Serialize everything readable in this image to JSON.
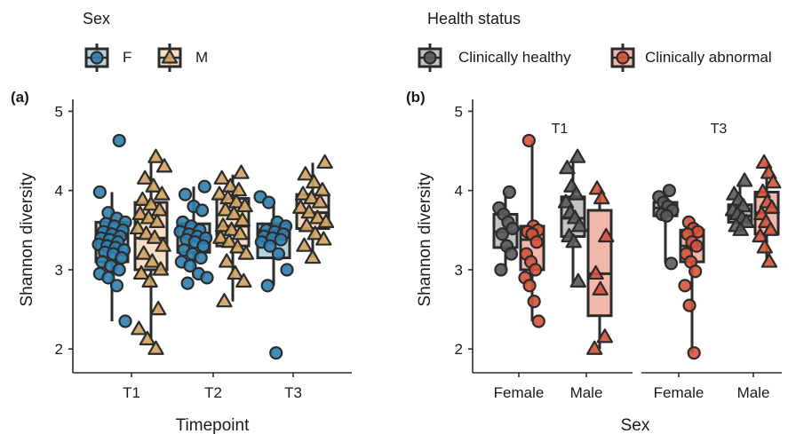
{
  "chart_data": [
    {
      "type": "boxplot",
      "panel": "(a)",
      "xlabel": "Timepoint",
      "ylabel": "Shannon diversity",
      "categories": [
        "T1",
        "T2",
        "T3"
      ],
      "ylim": [
        1.7,
        5.15
      ],
      "yticks": [
        2,
        3,
        4,
        5
      ],
      "grid": false,
      "legend": {
        "title": "Sex",
        "placement": "top-left",
        "entries": [
          "F",
          "M"
        ]
      },
      "series": [
        {
          "name": "F",
          "color": "#2f7fb0",
          "fill": "#a9c9dd",
          "marker": "circle",
          "boxes": [
            {
              "category": "T1",
              "min": 2.35,
              "q1": 3.1,
              "median": 3.45,
              "q3": 3.6,
              "max": 3.98
            },
            {
              "category": "T2",
              "min": 2.9,
              "q1": 3.22,
              "median": 3.42,
              "q3": 3.58,
              "max": 4.05
            },
            {
              "category": "T3",
              "min": 2.8,
              "q1": 3.15,
              "median": 3.5,
              "q3": 3.58,
              "max": 3.85
            }
          ],
          "points": [
            [
              4.63,
              3.98,
              3.72,
              3.65,
              3.6,
              3.58,
              3.55,
              3.5,
              3.48,
              3.45,
              3.42,
              3.4,
              3.38,
              3.35,
              3.32,
              3.3,
              3.28,
              3.25,
              3.22,
              3.2,
              3.15,
              3.1,
              3.05,
              3.0,
              2.95,
              2.9,
              2.8,
              2.35
            ],
            [
              4.05,
              3.95,
              3.8,
              3.75,
              3.6,
              3.55,
              3.5,
              3.48,
              3.45,
              3.42,
              3.4,
              3.38,
              3.35,
              3.3,
              3.25,
              3.2,
              3.15,
              3.1,
              3.05,
              2.95,
              2.9,
              2.83
            ],
            [
              3.92,
              3.85,
              3.6,
              3.55,
              3.5,
              3.48,
              3.45,
              3.42,
              3.4,
              3.38,
              3.35,
              3.3,
              3.2,
              3.0,
              2.8,
              1.95
            ]
          ]
        },
        {
          "name": "M",
          "color": "#d1a25f",
          "fill": "#f4d9ba",
          "marker": "triangle",
          "boxes": [
            {
              "category": "T1",
              "min": 2.12,
              "q1": 3.0,
              "median": 3.4,
              "q3": 3.85,
              "max": 4.42
            },
            {
              "category": "T2",
              "min": 2.6,
              "q1": 3.3,
              "median": 3.55,
              "q3": 3.9,
              "max": 4.2
            },
            {
              "category": "T3",
              "min": 3.15,
              "q1": 3.52,
              "median": 3.72,
              "q3": 3.95,
              "max": 4.35
            }
          ],
          "points": [
            [
              4.42,
              4.3,
              4.15,
              4.05,
              3.95,
              3.88,
              3.82,
              3.75,
              3.7,
              3.65,
              3.6,
              3.52,
              3.45,
              3.4,
              3.3,
              3.2,
              3.1,
              3.0,
              2.95,
              2.85,
              2.5,
              2.25,
              2.12,
              2.0
            ],
            [
              4.22,
              4.15,
              4.05,
              4.0,
              3.95,
              3.9,
              3.85,
              3.8,
              3.75,
              3.7,
              3.62,
              3.55,
              3.5,
              3.45,
              3.4,
              3.35,
              3.28,
              3.2,
              3.1,
              2.95,
              2.85,
              2.6
            ],
            [
              4.35,
              4.2,
              4.1,
              4.0,
              3.95,
              3.9,
              3.85,
              3.78,
              3.72,
              3.65,
              3.6,
              3.55,
              3.45,
              3.38,
              3.3,
              3.15
            ]
          ]
        }
      ]
    },
    {
      "type": "boxplot",
      "panel": "(b)",
      "xlabel": "Sex",
      "ylabel": "Shannon diversity",
      "ylim": [
        1.7,
        5.15
      ],
      "yticks": [
        2,
        3,
        4,
        5
      ],
      "grid": false,
      "legend": {
        "title": "Health status",
        "placement": "top-right",
        "entries": [
          "Clinically healthy",
          "Clinically abnormal"
        ]
      },
      "facets": [
        {
          "label": "T1",
          "categories": [
            "Female",
            "Male"
          ],
          "boxes": [
            {
              "category": "Female",
              "status": "Clinically healthy",
              "min": 3.0,
              "q1": 3.28,
              "median": 3.48,
              "q3": 3.7,
              "max": 3.98,
              "points": [
                3.98,
                3.78,
                3.7,
                3.6,
                3.52,
                3.45,
                3.3,
                3.2,
                3.0
              ]
            },
            {
              "category": "Female",
              "status": "Clinically abnormal",
              "min": 2.35,
              "q1": 3.0,
              "median": 3.38,
              "q3": 3.55,
              "max": 4.63,
              "points": [
                4.63,
                3.55,
                3.5,
                3.48,
                3.45,
                3.35,
                3.2,
                3.1,
                3.0,
                2.9,
                2.8,
                2.6,
                2.35
              ]
            },
            {
              "category": "Male",
              "status": "Clinically healthy",
              "min": 2.82,
              "q1": 3.42,
              "median": 3.65,
              "q3": 3.92,
              "max": 4.42,
              "points": [
                4.42,
                4.28,
                4.05,
                3.95,
                3.85,
                3.72,
                3.65,
                3.55,
                3.42,
                3.35,
                2.85
              ]
            },
            {
              "category": "Male",
              "status": "Clinically abnormal",
              "min": 2.0,
              "q1": 2.42,
              "median": 2.95,
              "q3": 3.75,
              "max": 4.02,
              "points": [
                4.02,
                3.9,
                3.42,
                2.95,
                2.75,
                2.15,
                2.0
              ]
            }
          ]
        },
        {
          "label": "T3",
          "categories": [
            "Female",
            "Male"
          ],
          "boxes": [
            {
              "category": "Female",
              "status": "Clinically healthy",
              "min": 3.08,
              "q1": 3.68,
              "median": 3.78,
              "q3": 3.85,
              "max": 4.0,
              "points": [
                4.0,
                3.92,
                3.85,
                3.8,
                3.75,
                3.7,
                3.68,
                3.08
              ]
            },
            {
              "category": "Female",
              "status": "Clinically abnormal",
              "min": 1.95,
              "q1": 3.1,
              "median": 3.3,
              "q3": 3.5,
              "max": 3.6,
              "points": [
                3.6,
                3.52,
                3.48,
                3.45,
                3.35,
                3.3,
                3.2,
                3.1,
                2.98,
                2.8,
                2.55,
                1.95
              ]
            },
            {
              "category": "Male",
              "status": "Clinically healthy",
              "min": 3.5,
              "q1": 3.6,
              "median": 3.68,
              "q3": 3.82,
              "max": 4.12,
              "points": [
                4.12,
                3.95,
                3.88,
                3.8,
                3.75,
                3.7,
                3.65,
                3.6,
                3.55,
                3.5
              ]
            },
            {
              "category": "Male",
              "status": "Clinically abnormal",
              "min": 3.1,
              "q1": 3.45,
              "median": 3.72,
              "q3": 3.98,
              "max": 4.35,
              "points": [
                4.35,
                4.22,
                4.1,
                3.98,
                3.85,
                3.78,
                3.7,
                3.6,
                3.5,
                3.42,
                3.28,
                3.1
              ]
            }
          ]
        }
      ],
      "status_colors": {
        "Clinically healthy": {
          "marker": "#5a5a5a",
          "fill": "#b9b9b9"
        },
        "Clinically abnormal": {
          "marker": "#d6533a",
          "fill": "#eeaa9c"
        }
      }
    }
  ]
}
